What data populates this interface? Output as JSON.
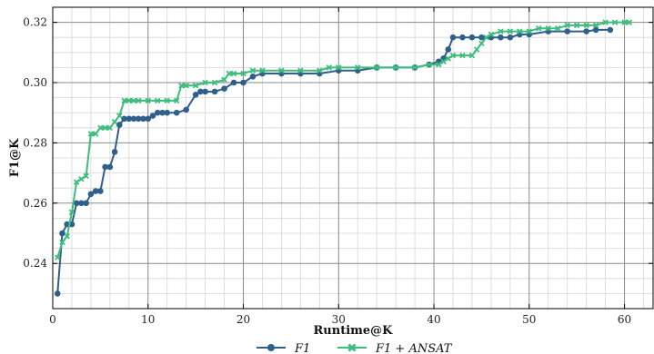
{
  "chart_data": {
    "type": "line",
    "xlabel": "Runtime@K",
    "ylabel": "F1@K",
    "xlim": [
      0,
      63
    ],
    "ylim": [
      0.225,
      0.325
    ],
    "x_ticks": [
      0,
      10,
      20,
      30,
      40,
      50,
      60
    ],
    "y_ticks": [
      0.24,
      0.26,
      0.28,
      0.3,
      0.32
    ],
    "x_tick_labels": [
      "0",
      "10",
      "20",
      "30",
      "40",
      "50",
      "60"
    ],
    "y_tick_labels": [
      "0.24",
      "0.26",
      "0.28",
      "0.30",
      "0.32"
    ],
    "grid": true,
    "legend_position": "bottom-center",
    "series": [
      {
        "name": "F1",
        "color": "#2f5f8a",
        "marker": "circle",
        "points": [
          [
            0.5,
            0.23
          ],
          [
            1.0,
            0.25
          ],
          [
            1.5,
            0.253
          ],
          [
            2.0,
            0.253
          ],
          [
            2.5,
            0.26
          ],
          [
            3.0,
            0.26
          ],
          [
            3.5,
            0.26
          ],
          [
            4.0,
            0.263
          ],
          [
            4.5,
            0.264
          ],
          [
            5.0,
            0.264
          ],
          [
            5.5,
            0.272
          ],
          [
            6.0,
            0.272
          ],
          [
            6.5,
            0.277
          ],
          [
            7.0,
            0.286
          ],
          [
            7.5,
            0.288
          ],
          [
            8.0,
            0.288
          ],
          [
            8.5,
            0.288
          ],
          [
            9.0,
            0.288
          ],
          [
            9.5,
            0.288
          ],
          [
            10.0,
            0.288
          ],
          [
            10.5,
            0.289
          ],
          [
            11.0,
            0.29
          ],
          [
            11.5,
            0.29
          ],
          [
            12.0,
            0.29
          ],
          [
            13.0,
            0.29
          ],
          [
            14.0,
            0.291
          ],
          [
            15.0,
            0.296
          ],
          [
            15.5,
            0.297
          ],
          [
            16.0,
            0.297
          ],
          [
            17.0,
            0.297
          ],
          [
            18.0,
            0.298
          ],
          [
            19.0,
            0.3
          ],
          [
            20.0,
            0.3
          ],
          [
            21.0,
            0.302
          ],
          [
            22.0,
            0.303
          ],
          [
            24.0,
            0.303
          ],
          [
            26.0,
            0.303
          ],
          [
            28.0,
            0.303
          ],
          [
            30.0,
            0.304
          ],
          [
            32.0,
            0.304
          ],
          [
            34.0,
            0.305
          ],
          [
            36.0,
            0.305
          ],
          [
            38.0,
            0.305
          ],
          [
            39.5,
            0.306
          ],
          [
            40.5,
            0.307
          ],
          [
            41.0,
            0.308
          ],
          [
            41.5,
            0.311
          ],
          [
            42.0,
            0.315
          ],
          [
            43.0,
            0.315
          ],
          [
            44.0,
            0.315
          ],
          [
            45.0,
            0.315
          ],
          [
            46.0,
            0.315
          ],
          [
            47.0,
            0.315
          ],
          [
            48.0,
            0.315
          ],
          [
            49.0,
            0.316
          ],
          [
            50.0,
            0.316
          ],
          [
            52.0,
            0.317
          ],
          [
            54.0,
            0.317
          ],
          [
            56.0,
            0.317
          ],
          [
            57.0,
            0.3175
          ],
          [
            58.5,
            0.3175
          ]
        ]
      },
      {
        "name": "F1 + ANSAT",
        "color": "#3dbd7d",
        "marker": "x",
        "points": [
          [
            0.5,
            0.242
          ],
          [
            1.0,
            0.247
          ],
          [
            1.5,
            0.249
          ],
          [
            2.0,
            0.257
          ],
          [
            2.5,
            0.267
          ],
          [
            3.0,
            0.268
          ],
          [
            3.5,
            0.269
          ],
          [
            4.0,
            0.283
          ],
          [
            4.5,
            0.283
          ],
          [
            5.0,
            0.285
          ],
          [
            5.5,
            0.285
          ],
          [
            6.0,
            0.285
          ],
          [
            6.5,
            0.287
          ],
          [
            7.0,
            0.289
          ],
          [
            7.5,
            0.294
          ],
          [
            8.0,
            0.294
          ],
          [
            8.5,
            0.294
          ],
          [
            9.0,
            0.294
          ],
          [
            10.0,
            0.294
          ],
          [
            11.0,
            0.294
          ],
          [
            12.0,
            0.294
          ],
          [
            13.0,
            0.294
          ],
          [
            13.5,
            0.299
          ],
          [
            14.0,
            0.299
          ],
          [
            15.0,
            0.299
          ],
          [
            16.0,
            0.3
          ],
          [
            17.0,
            0.3
          ],
          [
            18.0,
            0.301
          ],
          [
            18.5,
            0.303
          ],
          [
            19.0,
            0.303
          ],
          [
            20.0,
            0.303
          ],
          [
            21.0,
            0.304
          ],
          [
            22.0,
            0.304
          ],
          [
            24.0,
            0.304
          ],
          [
            26.0,
            0.304
          ],
          [
            28.0,
            0.304
          ],
          [
            29.0,
            0.305
          ],
          [
            30.0,
            0.305
          ],
          [
            32.0,
            0.305
          ],
          [
            34.0,
            0.305
          ],
          [
            36.0,
            0.305
          ],
          [
            38.0,
            0.305
          ],
          [
            39.5,
            0.306
          ],
          [
            40.5,
            0.306
          ],
          [
            41.0,
            0.307
          ],
          [
            41.5,
            0.308
          ],
          [
            42.0,
            0.309
          ],
          [
            43.0,
            0.309
          ],
          [
            44.0,
            0.309
          ],
          [
            44.5,
            0.311
          ],
          [
            45.0,
            0.313
          ],
          [
            45.5,
            0.315
          ],
          [
            46.0,
            0.316
          ],
          [
            47.0,
            0.317
          ],
          [
            48.0,
            0.317
          ],
          [
            49.0,
            0.317
          ],
          [
            50.0,
            0.317
          ],
          [
            51.0,
            0.318
          ],
          [
            52.0,
            0.318
          ],
          [
            53.0,
            0.318
          ],
          [
            54.0,
            0.319
          ],
          [
            55.0,
            0.319
          ],
          [
            56.0,
            0.319
          ],
          [
            57.0,
            0.319
          ],
          [
            58.0,
            0.32
          ],
          [
            59.0,
            0.32
          ],
          [
            60.0,
            0.32
          ],
          [
            60.5,
            0.32
          ]
        ]
      }
    ]
  },
  "legend": {
    "items": [
      {
        "label": "F1"
      },
      {
        "label": "F1 + ANSAT"
      }
    ]
  }
}
